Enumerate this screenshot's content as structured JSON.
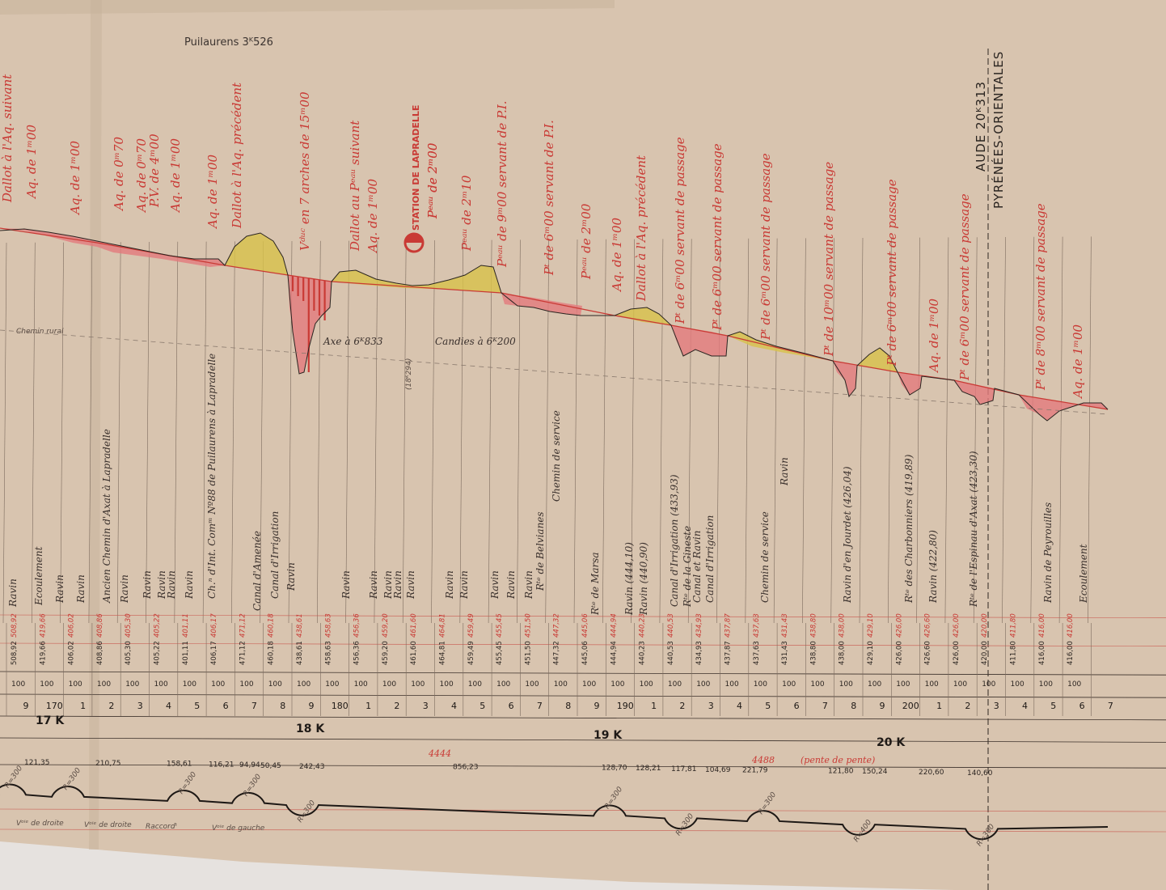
{
  "header": {
    "top_note": "Puilaurens 3ᴷ526",
    "right_title_1": "AUDE  20ᴷ313",
    "right_title_2": "PYRÉNÉES-ORIENTALES"
  },
  "ouvrages": [
    "Dallot à l'Aq. suivant",
    "Aq. de 1ᵐ00",
    "Aq. de 1ᵐ00",
    "Aq. de 0ᵐ70",
    "Aq. de 0ᵐ70",
    "P.V. de 4ᵐ00",
    "Aq. de 1ᵐ00",
    "Aq. de 1ᵐ00",
    "Dallot à l'Aq. précédent",
    "Vᵈᵘᶜ en 7 arches de 15ᵐ00",
    "Dallot au Pᵉᵃᵘ suivant",
    "Aq. de 1ᵐ00",
    "Pᵉᵃᵘ de 2ᵐ00",
    "Pᵉᵃᵘ de 2ᵐ10",
    "Pᵉᵃᵘ de 9ᵐ00 servant de P.I.",
    "Pᵗ de 6ᵐ00 servant de P.I.",
    "Pᵉᵃᵘ de 2ᵐ00",
    "Aq. de 1ᵐ00",
    "Dallot à l'Aq. précédent",
    "Pᵗ de 6ᵐ00 servant de passage",
    "Pᵗ de 6ᵐ00 servant de passage",
    "Pᵗ de 6ᵐ00 servant de passage",
    "Pᵗ de 10ᵐ00 servant de passage",
    "Pᵗ de 6ᵐ00 servant de passage",
    "Aq. de 1ᵐ00",
    "Pᵗ de 6ᵐ00 servant de passage",
    "Pᵗ de 8ᵐ00 servant de passage",
    "Aq. de 1ᵐ00"
  ],
  "station": {
    "name": "STATION DE LAPRADELLE",
    "note": "Pᵉᵃᵘ de 2ᵐ00"
  },
  "mid_labels": {
    "chemin": "Chemin rural",
    "axe": "Axe à 6ᴷ833",
    "candies": "Candies à 6ᴷ200",
    "km_ref": "(18ᴷ294)"
  },
  "points": [
    "Ravin",
    "Ecoulement",
    "Ravin",
    "Ravin",
    "Ancien Chemin d'Axat à Lapradelle",
    "Ravin",
    "Ravin",
    "Ravin",
    "Ravin",
    "Ravin",
    "Ch.ⁿ d'Int. Comᵐ Nº88 de Puilaurens à Lapradelle",
    "Canal d'Amenée",
    "Canal d'Irrigation",
    "Ravin",
    "Ravin",
    "Ravin",
    "Ravin",
    "Ravin",
    "Ravin",
    "Ravin",
    "Ravin",
    "Ravin",
    "Ravin",
    "Ravin",
    "Rᵗᵉ de Belvianes",
    "Chemin de service",
    "Rᵗᵉ de Marsa",
    "Ravin (444,10)",
    "Ravin (440,90)",
    "Canal d'Irrigation (433,93)",
    "Rᵗᵉ de la Gineste",
    "Canal et Ravin",
    "Canal d'Irrigation",
    "Chemin de service",
    "Ravin",
    "Ravin d'en Jourdet (426,04)",
    "Rᵗᵉ des Charbonniers (419,89)",
    "Ravin (422,80)",
    "Rᵗᵉ de l'Espinau d'Axat (423,30)",
    "Ravin de Peyrouilles",
    "Ecoulement"
  ],
  "cotes_terrain": [
    "508,92",
    "419,66",
    "406,02",
    "408,86",
    "405,30",
    "405,22",
    "401,11",
    "406,17",
    "471,12",
    "460,18",
    "438,61",
    "458,63",
    "456,36",
    "459,20",
    "461,60",
    "464,81",
    "459,49",
    "455,45",
    "451,50",
    "447,32",
    "445,06",
    "444,94",
    "440,23",
    "440,53",
    "434,93",
    "437,87",
    "437,63",
    "431,43",
    "438,80",
    "438,00",
    "429,10",
    "426,00",
    "426,60",
    "426,00",
    "420,00",
    "411,80",
    "416,00",
    "416,00"
  ],
  "distances": [
    "100",
    "100",
    "100",
    "100",
    "100",
    "100",
    "100",
    "100",
    "100",
    "100",
    "100",
    "100",
    "100",
    "100",
    "100",
    "100",
    "100",
    "100",
    "100",
    "100",
    "100",
    "100",
    "100",
    "100",
    "100",
    "100",
    "100",
    "100",
    "100",
    "100",
    "100",
    "100",
    "100",
    "100",
    "100",
    "100",
    "100",
    "100"
  ],
  "hectometres": [
    "9",
    "170",
    "1",
    "2",
    "3",
    "4",
    "5",
    "6",
    "7",
    "8",
    "9",
    "180",
    "1",
    "2",
    "3",
    "4",
    "5",
    "6",
    "7",
    "8",
    "9",
    "190",
    "1",
    "2",
    "3",
    "4",
    "5",
    "6",
    "7",
    "8",
    "9",
    "200",
    "1",
    "2",
    "3",
    "4",
    "5",
    "6",
    "7"
  ],
  "kilometres": [
    "17 K",
    "18 K",
    "19 K",
    "20 K"
  ],
  "alignements": [
    "121,35",
    "210,75",
    "158,61",
    "116,21",
    "94,94",
    "50,45",
    "242,43",
    "856,23",
    "128,70",
    "128,21",
    "117,81",
    "104,69",
    "221,79",
    "121,80",
    "150,24",
    "220,60",
    "140,60"
  ],
  "alignment_notes": {
    "pente": "(pente de pente)",
    "level": "4444",
    "level2": "4488"
  },
  "rayons": [
    "R=300",
    "R=300",
    "R=300",
    "R=300",
    "R=300",
    "R=300",
    "R=300",
    "R=300",
    "R=400",
    "R=300"
  ],
  "courbes": [
    "Vᵒⁱᵉ de droite",
    "Vᵒⁱᵉ de droite",
    "Raccordᵗ",
    "Vᵒⁱᵉ de gauche"
  ],
  "colors": {
    "paper": "#d8c4af",
    "fill_deblai": "#d8c24a",
    "fill_remblai": "#e47b7d",
    "red_ink": "#c93a35",
    "black_ink": "#2a2420"
  }
}
